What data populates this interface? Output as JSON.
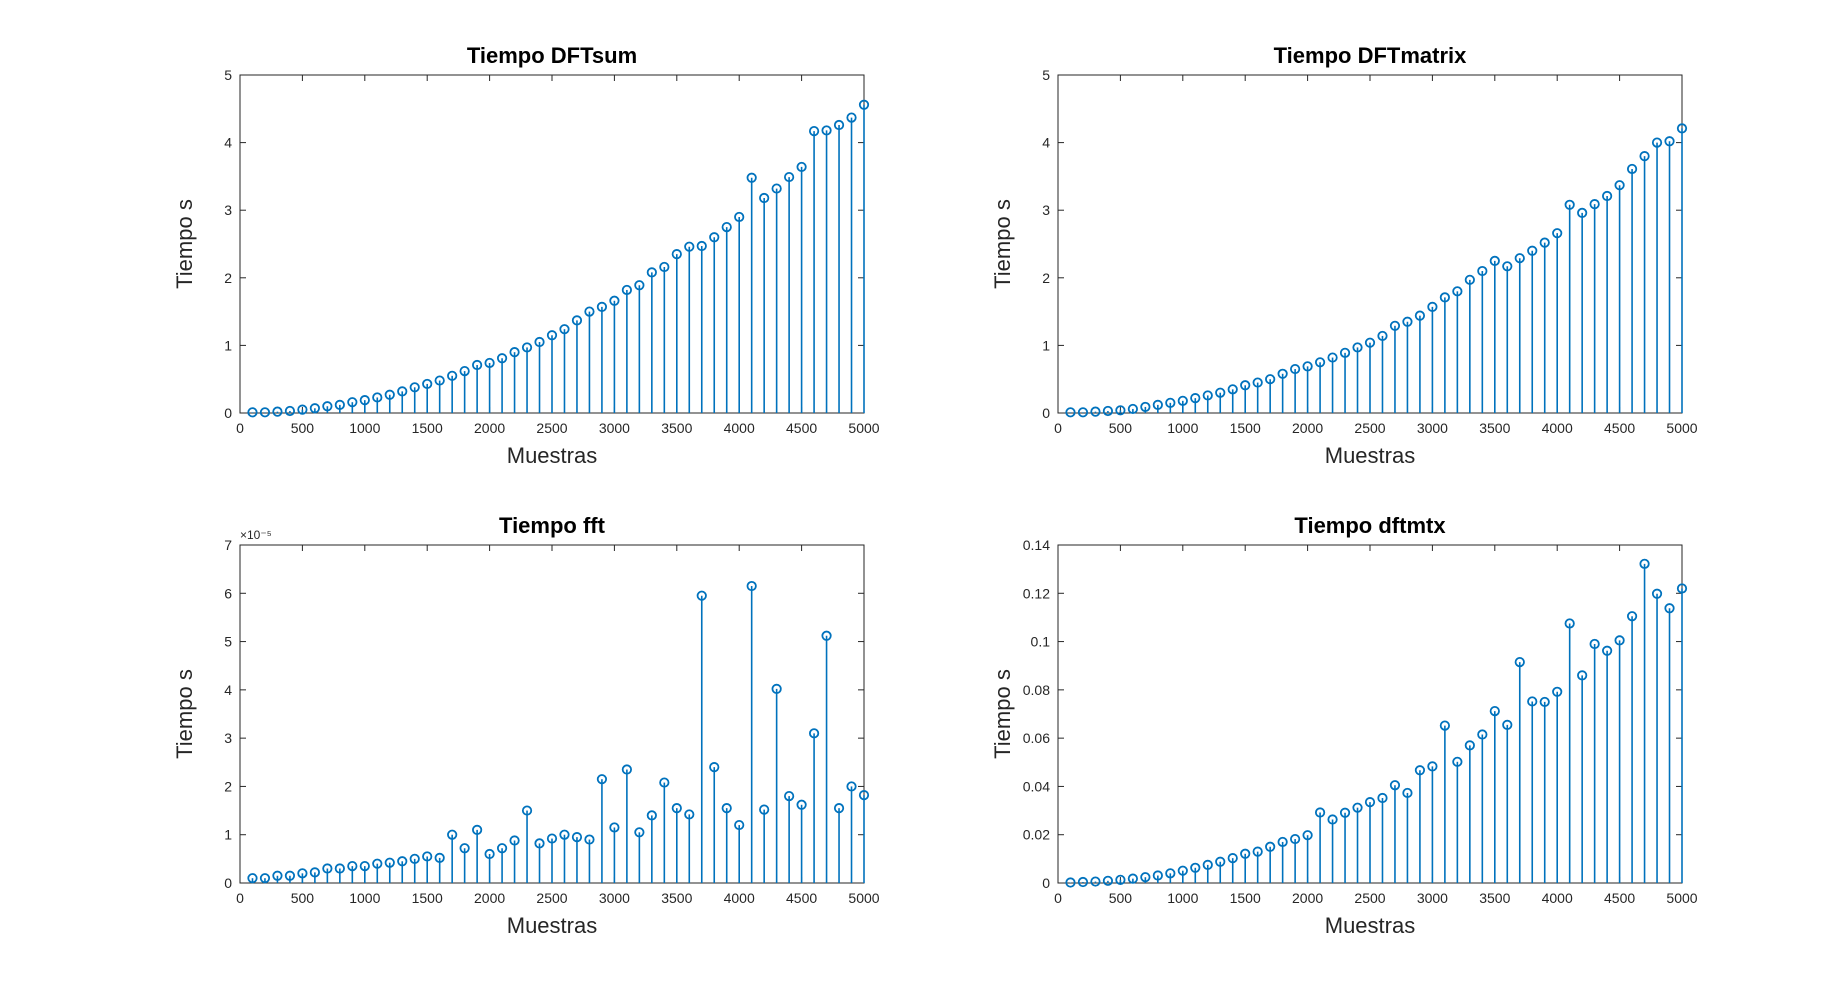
{
  "figure": {
    "marker_color": "#0072bd",
    "axis_color": "#262626"
  },
  "chart_data": [
    {
      "type": "stem",
      "title": "Tiempo DFTsum",
      "xlabel": "Muestras",
      "ylabel": "Tiempo s",
      "xlim": [
        0,
        5000
      ],
      "ylim": [
        0,
        5
      ],
      "xticks": [
        "0",
        "500",
        "1000",
        "1500",
        "2000",
        "2500",
        "3000",
        "3500",
        "4000",
        "4500",
        "5000"
      ],
      "yticks": [
        "0",
        "1",
        "2",
        "3",
        "4",
        "5"
      ],
      "y_exponent": "",
      "x": [
        100,
        200,
        300,
        400,
        500,
        600,
        700,
        800,
        900,
        1000,
        1100,
        1200,
        1300,
        1400,
        1500,
        1600,
        1700,
        1800,
        1900,
        2000,
        2100,
        2200,
        2300,
        2400,
        2500,
        2600,
        2700,
        2800,
        2900,
        3000,
        3100,
        3200,
        3300,
        3400,
        3500,
        3600,
        3700,
        3800,
        3900,
        4000,
        4100,
        4200,
        4300,
        4400,
        4500,
        4600,
        4700,
        4800,
        4900,
        5000
      ],
      "y": [
        0.01,
        0.01,
        0.02,
        0.03,
        0.05,
        0.07,
        0.1,
        0.12,
        0.16,
        0.19,
        0.23,
        0.27,
        0.32,
        0.38,
        0.43,
        0.48,
        0.55,
        0.62,
        0.71,
        0.74,
        0.81,
        0.9,
        0.97,
        1.05,
        1.15,
        1.24,
        1.37,
        1.5,
        1.57,
        1.66,
        1.82,
        1.89,
        2.08,
        2.16,
        2.35,
        2.46,
        2.47,
        2.6,
        2.75,
        2.9,
        3.48,
        3.18,
        3.32,
        3.49,
        3.64,
        4.17,
        4.18,
        4.26,
        4.37,
        4.56
      ]
    },
    {
      "type": "stem",
      "title": "Tiempo DFTmatrix",
      "xlabel": "Muestras",
      "ylabel": "Tiempo s",
      "xlim": [
        0,
        5000
      ],
      "ylim": [
        0,
        5
      ],
      "xticks": [
        "0",
        "500",
        "1000",
        "1500",
        "2000",
        "2500",
        "3000",
        "3500",
        "4000",
        "4500",
        "5000"
      ],
      "yticks": [
        "0",
        "1",
        "2",
        "3",
        "4",
        "5"
      ],
      "y_exponent": "",
      "x": [
        100,
        200,
        300,
        400,
        500,
        600,
        700,
        800,
        900,
        1000,
        1100,
        1200,
        1300,
        1400,
        1500,
        1600,
        1700,
        1800,
        1900,
        2000,
        2100,
        2200,
        2300,
        2400,
        2500,
        2600,
        2700,
        2800,
        2900,
        3000,
        3100,
        3200,
        3300,
        3400,
        3500,
        3600,
        3700,
        3800,
        3900,
        4000,
        4100,
        4200,
        4300,
        4400,
        4500,
        4600,
        4700,
        4800,
        4900,
        5000
      ],
      "y": [
        0.01,
        0.01,
        0.02,
        0.03,
        0.04,
        0.06,
        0.09,
        0.12,
        0.15,
        0.18,
        0.22,
        0.26,
        0.3,
        0.35,
        0.41,
        0.45,
        0.5,
        0.58,
        0.65,
        0.69,
        0.75,
        0.82,
        0.89,
        0.97,
        1.04,
        1.14,
        1.29,
        1.35,
        1.44,
        1.57,
        1.71,
        1.8,
        1.97,
        2.1,
        2.25,
        2.17,
        2.29,
        2.4,
        2.52,
        2.66,
        3.08,
        2.96,
        3.09,
        3.21,
        3.37,
        3.61,
        3.8,
        4.0,
        4.02,
        4.21
      ]
    },
    {
      "type": "stem",
      "title": "Tiempo fft",
      "xlabel": "Muestras",
      "ylabel": "Tiempo s",
      "xlim": [
        0,
        5000
      ],
      "ylim": [
        0,
        7
      ],
      "xticks": [
        "0",
        "500",
        "1000",
        "1500",
        "2000",
        "2500",
        "3000",
        "3500",
        "4000",
        "4500",
        "5000"
      ],
      "yticks": [
        "0",
        "1",
        "2",
        "3",
        "4",
        "5",
        "6",
        "7"
      ],
      "y_exponent": "×10⁻⁵",
      "x": [
        100,
        200,
        300,
        400,
        500,
        600,
        700,
        800,
        900,
        1000,
        1100,
        1200,
        1300,
        1400,
        1500,
        1600,
        1700,
        1800,
        1900,
        2000,
        2100,
        2200,
        2300,
        2400,
        2500,
        2600,
        2700,
        2800,
        2900,
        3000,
        3100,
        3200,
        3300,
        3400,
        3500,
        3600,
        3700,
        3800,
        3900,
        4000,
        4100,
        4200,
        4300,
        4400,
        4500,
        4600,
        4700,
        4800,
        4900,
        5000
      ],
      "y": [
        0.1,
        0.1,
        0.15,
        0.15,
        0.2,
        0.22,
        0.3,
        0.3,
        0.35,
        0.35,
        0.4,
        0.42,
        0.45,
        0.5,
        0.55,
        0.52,
        1.0,
        0.72,
        1.1,
        0.6,
        0.72,
        0.88,
        1.5,
        0.82,
        0.92,
        1.0,
        0.95,
        0.9,
        2.15,
        1.15,
        2.35,
        1.05,
        1.4,
        2.08,
        1.55,
        1.42,
        5.95,
        2.4,
        1.55,
        1.2,
        6.15,
        1.52,
        4.02,
        1.8,
        1.62,
        3.1,
        5.12,
        1.55,
        2.0,
        1.82
      ]
    },
    {
      "type": "stem",
      "title": "Tiempo dftmtx",
      "xlabel": "Muestras",
      "ylabel": "Tiempo s",
      "xlim": [
        0,
        5000
      ],
      "ylim": [
        0,
        0.14
      ],
      "xticks": [
        "0",
        "500",
        "1000",
        "1500",
        "2000",
        "2500",
        "3000",
        "3500",
        "4000",
        "4500",
        "5000"
      ],
      "yticks": [
        "0",
        "0.02",
        "0.04",
        "0.06",
        "0.08",
        "0.1",
        "0.12",
        "0.14"
      ],
      "y_exponent": "",
      "x": [
        100,
        200,
        300,
        400,
        500,
        600,
        700,
        800,
        900,
        1000,
        1100,
        1200,
        1300,
        1400,
        1500,
        1600,
        1700,
        1800,
        1900,
        2000,
        2100,
        2200,
        2300,
        2400,
        2500,
        2600,
        2700,
        2800,
        2900,
        3000,
        3100,
        3200,
        3300,
        3400,
        3500,
        3600,
        3700,
        3800,
        3900,
        4000,
        4100,
        4200,
        4300,
        4400,
        4500,
        4600,
        4700,
        4800,
        4900,
        5000
      ],
      "y": [
        0.0002,
        0.0004,
        0.0006,
        0.0009,
        0.0013,
        0.0018,
        0.0024,
        0.0031,
        0.004,
        0.0051,
        0.0063,
        0.0075,
        0.0088,
        0.0103,
        0.0121,
        0.013,
        0.015,
        0.017,
        0.0182,
        0.0198,
        0.0292,
        0.0263,
        0.0291,
        0.0312,
        0.0335,
        0.0352,
        0.0405,
        0.0373,
        0.0467,
        0.0483,
        0.0652,
        0.0502,
        0.057,
        0.0615,
        0.0712,
        0.0655,
        0.0915,
        0.0752,
        0.075,
        0.0792,
        0.1075,
        0.086,
        0.099,
        0.0962,
        0.1005,
        0.1105,
        0.1322,
        0.1198,
        0.1138,
        0.122
      ]
    }
  ]
}
